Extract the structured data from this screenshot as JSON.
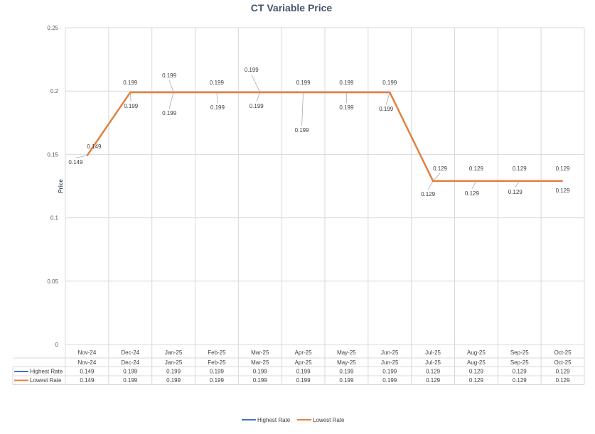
{
  "chart_data": {
    "type": "line",
    "title": "CT Variable Price",
    "xlabel": "",
    "ylabel": "Price",
    "categories": [
      "Nov-24",
      "Dec-24",
      "Jan-25",
      "Feb-25",
      "Mar-25",
      "Apr-25",
      "May-25",
      "Jun-25",
      "Jul-25",
      "Aug-25",
      "Sep-25",
      "Oct-25"
    ],
    "series": [
      {
        "name": "Highest Rate",
        "color": "#4472C4",
        "values": [
          0.149,
          0.199,
          0.199,
          0.199,
          0.199,
          0.199,
          0.199,
          0.199,
          0.129,
          0.129,
          0.129,
          0.129
        ]
      },
      {
        "name": "Lowest Rate",
        "color": "#ED7D31",
        "values": [
          0.149,
          0.199,
          0.199,
          0.199,
          0.199,
          0.199,
          0.199,
          0.199,
          0.129,
          0.129,
          0.129,
          0.129
        ]
      }
    ],
    "ylim": [
      0,
      0.25
    ],
    "yticks": [
      "0",
      "0.05",
      "0.1",
      "0.15",
      "0.2",
      "0.25"
    ],
    "grid": true,
    "data_table": true,
    "legend_position": "bottom"
  }
}
